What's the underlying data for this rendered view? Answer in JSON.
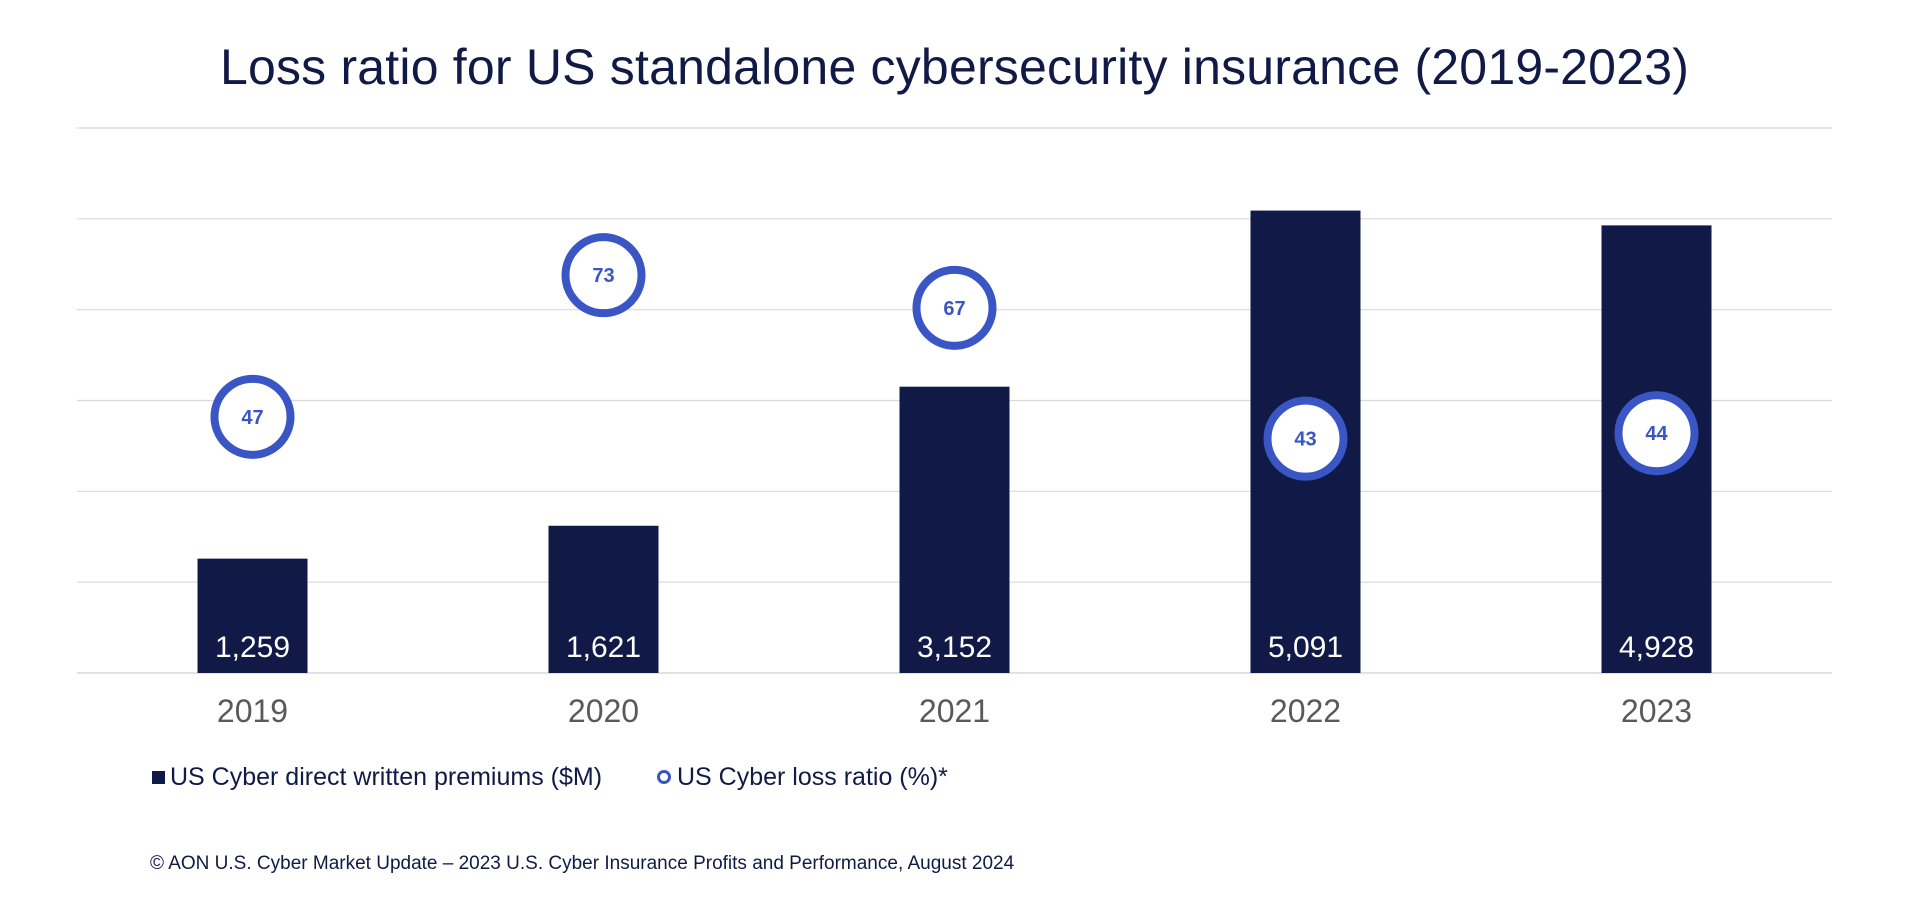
{
  "colors": {
    "bar": "#111a46",
    "marker_ring": "#3a55c4",
    "marker_text": "#3a55c4",
    "bar_label": "#ffffff",
    "tick_label": "#595959",
    "grid": "#d9d9d9",
    "title": "#111a46"
  },
  "chart_data": {
    "type": "bar",
    "title": "Loss ratio for US standalone cybersecurity insurance (2019-2023)",
    "categories": [
      "2019",
      "2020",
      "2021",
      "2022",
      "2023"
    ],
    "series": [
      {
        "name": "US Cyber direct written premiums ($M)",
        "kind": "bar",
        "values": [
          1259,
          1621,
          3152,
          5091,
          4928
        ],
        "labels": [
          "1,259",
          "1,621",
          "3,152",
          "5,091",
          "4,928"
        ]
      },
      {
        "name": "US Cyber loss ratio (%)*",
        "kind": "marker",
        "values": [
          47,
          73,
          67,
          43,
          44
        ]
      }
    ],
    "ylim_bars": [
      0,
      6000
    ],
    "ylim_ratio": [
      0,
      100
    ],
    "grid": true,
    "legend_position": "bottom-left"
  },
  "footnote": "© AON U.S. Cyber Market Update – 2023 U.S. Cyber Insurance Profits and Performance, August 2024"
}
